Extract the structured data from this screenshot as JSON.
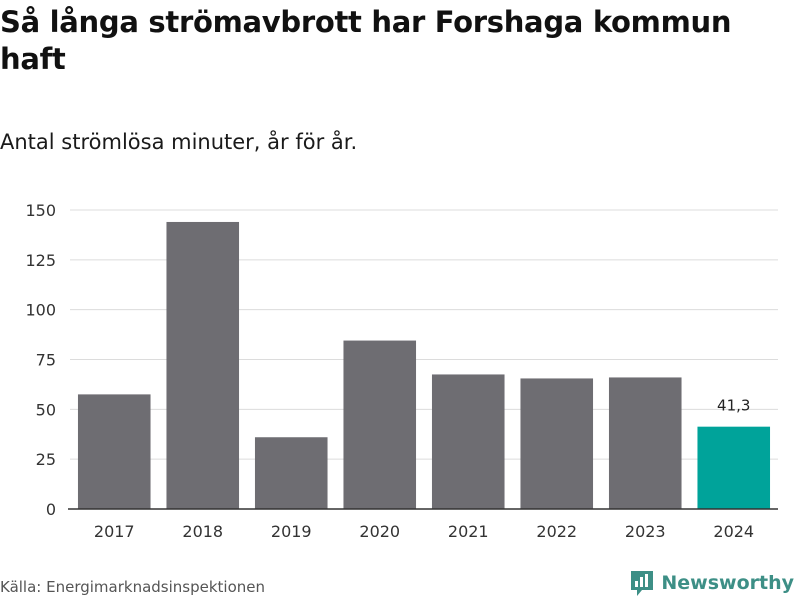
{
  "title": "Så långa strömavbrott har Forshaga kommun haft",
  "subtitle": "Antal strömlösa minuter, år för år.",
  "source": "Källa: Energimarknadsinspektionen",
  "brand": {
    "name": "Newsworthy",
    "icon": "newsworthy-logo-icon",
    "color": "#3d8f86"
  },
  "colors": {
    "bar": "#6e6d72",
    "highlight": "#00a39a",
    "grid": "#dcdcdc",
    "axis": "#333333"
  },
  "chart_data": {
    "type": "bar",
    "categories": [
      "2017",
      "2018",
      "2019",
      "2020",
      "2021",
      "2022",
      "2023",
      "2024"
    ],
    "values": [
      57.5,
      144,
      36,
      84.5,
      67.5,
      65.5,
      66,
      41.3
    ],
    "highlight_index": 7,
    "data_labels": {
      "7": "41,3"
    },
    "yticks": [
      "0",
      "25",
      "50",
      "75",
      "100",
      "125",
      "150"
    ],
    "ylim": [
      0,
      150
    ],
    "grid": true,
    "legend": false
  }
}
